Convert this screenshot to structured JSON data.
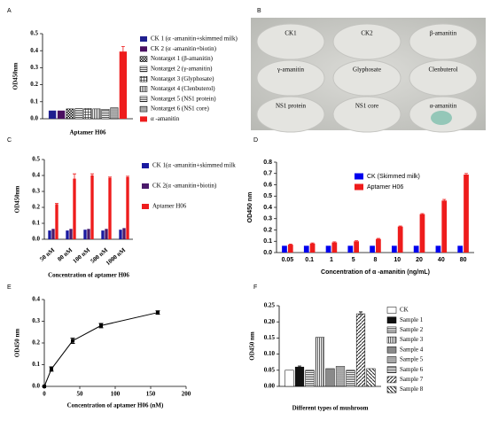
{
  "chart_data": [
    {
      "type": "bar",
      "label": "A",
      "ylabel": "OD450nm",
      "xlabel": "Aptamer H06",
      "ylim": [
        0,
        0.5
      ],
      "yticks": [
        {
          "value": 0,
          "label": "0.0"
        },
        0.1,
        0.2,
        0.3,
        0.4,
        0.5
      ],
      "series": [
        {
          "name": "CK 1 (α -amanitin+skimmed milk)",
          "color": "#1f1f8f",
          "values": [
            0.048
          ]
        },
        {
          "name": "CK 2 (α -amanitin+biotin)",
          "color": "#4b1060",
          "values": [
            0.048
          ]
        },
        {
          "name": "Nontarget 1 (β-amanitin)",
          "pattern": "checker",
          "values": [
            0.058
          ]
        },
        {
          "name": "Nontarget 2 (γ-amanitin)",
          "pattern": "hlines",
          "values": [
            0.06
          ]
        },
        {
          "name": "Nontarget 3 (Glyphosate)",
          "pattern": "grid",
          "values": [
            0.06
          ]
        },
        {
          "name": "Nontarget 4 (Clenbuterol)",
          "pattern": "vlines",
          "values": [
            0.058
          ]
        },
        {
          "name": "Nontarget 5 (NS1 protein)",
          "pattern": "hlines",
          "values": [
            0.056
          ]
        },
        {
          "name": "Nontarget 6 (NS1 core)",
          "pattern": "dots",
          "values": [
            0.065
          ]
        },
        {
          "name": "α -amanitin",
          "color": "#ee1c1c",
          "values": [
            0.395
          ],
          "errors": [
            0.03
          ]
        }
      ]
    },
    {
      "type": "plate",
      "label": "B",
      "wells": [
        "CK1",
        "CK2",
        "β-amanitin",
        "γ-amanitin",
        "Glyphosate",
        "Clenbuterol",
        "NS1 protein",
        "NS1 core",
        "α-amanitin"
      ]
    },
    {
      "type": "bar",
      "label": "C",
      "ylabel": "OD450nm",
      "xlabel": "Concentration of aptamer H06",
      "categories": [
        "50 nM",
        "80 nM",
        "100 nM",
        "500 nM",
        "1000 nM"
      ],
      "ylim": [
        0,
        0.5
      ],
      "yticks": [
        {
          "value": 0,
          "label": "0.0"
        },
        0.1,
        0.2,
        0.3,
        0.4,
        0.5
      ],
      "series": [
        {
          "name": "CK 1(α -amanitin+skimmed milk",
          "color": "#1a1aa0",
          "values": [
            0.055,
            0.055,
            0.06,
            0.055,
            0.06
          ]
        },
        {
          "name": "CK 2(α -amanitin+biotin)",
          "color": "#4a1a6a",
          "values": [
            0.065,
            0.065,
            0.065,
            0.065,
            0.07
          ]
        },
        {
          "name": "Aptamer H06",
          "color": "#ee1c1c",
          "values": [
            0.22,
            0.38,
            0.4,
            0.385,
            0.39
          ],
          "errors": [
            0.005,
            0.03,
            0.01,
            0.005,
            0.005
          ]
        }
      ]
    },
    {
      "type": "bar",
      "label": "D",
      "ylabel": "OD450 nm",
      "xlabel": "Concentration of α -amanitin (ng/mL)",
      "categories": [
        "0.05",
        "0.1",
        "1",
        "5",
        "8",
        "10",
        "20",
        "40",
        "80"
      ],
      "ylim": [
        0,
        0.8
      ],
      "yticks": [
        {
          "value": 0,
          "label": "0.0"
        },
        0.1,
        0.2,
        0.3,
        0.4,
        0.5,
        0.6,
        0.7,
        0.8
      ],
      "series": [
        {
          "name": "CK (Skimmed milk)",
          "color": "#0000ee",
          "values": [
            0.06,
            0.06,
            0.06,
            0.06,
            0.06,
            0.06,
            0.06,
            0.06,
            0.06
          ]
        },
        {
          "name": "Aptamer H06",
          "color": "#ee1c1c",
          "values": [
            0.07,
            0.08,
            0.09,
            0.1,
            0.12,
            0.23,
            0.34,
            0.46,
            0.69
          ],
          "errors": [
            0.005,
            0.005,
            0.005,
            0.005,
            0.005,
            0.005,
            0.005,
            0.01,
            0.01
          ]
        }
      ]
    },
    {
      "type": "line",
      "label": "E",
      "ylabel": "OD450 nm",
      "xlabel": "Concentration of aptamer H06 (nM)",
      "x": [
        0,
        10,
        40,
        80,
        160
      ],
      "values": [
        0,
        0.08,
        0.21,
        0.28,
        0.34
      ],
      "errors": [
        0,
        0.01,
        0.012,
        0.01,
        0.008
      ],
      "xlim": [
        0,
        200
      ],
      "xticks": [
        0,
        50,
        100,
        150,
        200
      ],
      "ylim": [
        0,
        0.4
      ],
      "yticks": [
        {
          "value": 0,
          "label": "0.0"
        },
        0.1,
        0.2,
        0.3,
        0.4
      ],
      "color": "#000000"
    },
    {
      "type": "bar",
      "label": "F",
      "ylabel": "OD450 nm",
      "xlabel": "Different types of mushroom",
      "ylim": [
        0,
        0.25
      ],
      "yticks": [
        {
          "value": 0,
          "label": "0.00"
        },
        0.05,
        {
          "value": 0.1,
          "label": "0.10"
        },
        0.15,
        {
          "value": 0.2,
          "label": "0.20"
        },
        0.25
      ],
      "series": [
        {
          "name": "CK",
          "color": "#ffffff",
          "values": [
            0.05
          ]
        },
        {
          "name": "Sample 1",
          "color": "#111111",
          "values": [
            0.06
          ],
          "errors": [
            0.003
          ]
        },
        {
          "name": "Sample 2",
          "pattern": "hlines",
          "values": [
            0.05
          ]
        },
        {
          "name": "Sample 3",
          "pattern": "vlines",
          "values": [
            0.152
          ]
        },
        {
          "name": "Sample 4",
          "color": "#8a8a8a",
          "values": [
            0.055
          ]
        },
        {
          "name": "Sample 5",
          "pattern": "dots",
          "values": [
            0.062
          ]
        },
        {
          "name": "Sample 6",
          "pattern": "hlines",
          "values": [
            0.05
          ]
        },
        {
          "name": "Sample 7",
          "pattern": "diag",
          "values": [
            0.225
          ],
          "errors": [
            0.006
          ]
        },
        {
          "name": "Sample 8",
          "pattern": "diag2",
          "values": [
            0.055
          ]
        }
      ]
    }
  ]
}
